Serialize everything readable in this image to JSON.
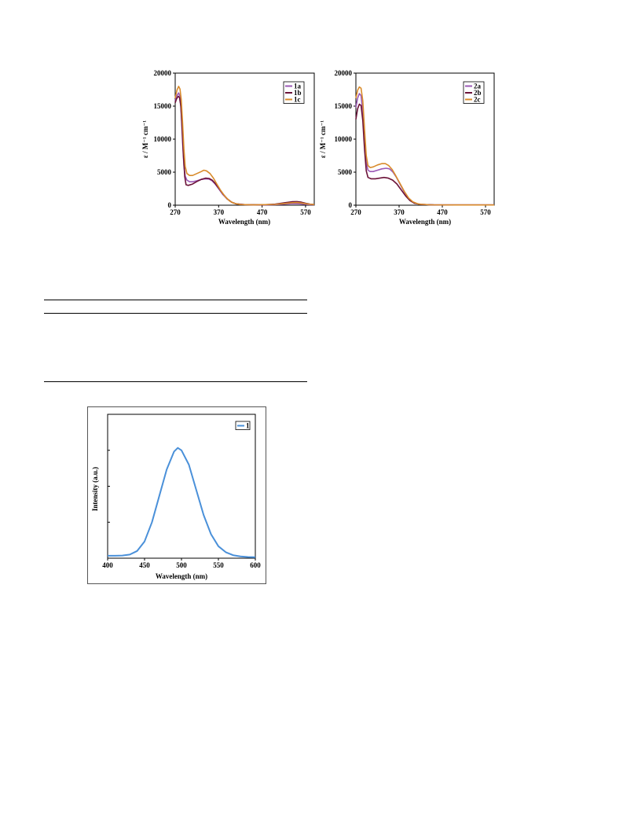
{
  "charts": {
    "abs_1": {
      "ylabel": "ε / M⁻¹ cm⁻¹",
      "xlabel": "Wavelength (nm)"
    },
    "abs_2": {
      "ylabel": "ε / M⁻¹ cm⁻¹",
      "xlabel": "Wavelength (nm)"
    },
    "emission": {
      "ylabel": "Intensity (a.u.)",
      "xlabel": "Wavelength (nm)"
    }
  },
  "chart_data": [
    {
      "type": "line",
      "xlabel": "Wavelength (nm)",
      "ylabel": "ε / M⁻¹ cm⁻¹",
      "xlim": [
        270,
        590
      ],
      "ylim": [
        0,
        20000
      ],
      "x_ticks": [
        "270",
        "370",
        "470",
        "570"
      ],
      "y_ticks": [
        "0",
        "5000",
        "10000",
        "15000",
        "20000"
      ],
      "legend": "top-right",
      "grid": false,
      "series": [
        {
          "name": "1a",
          "color": "#9b59b6",
          "points": [
            [
              270,
              15800
            ],
            [
              274,
              16600
            ],
            [
              278,
              17000
            ],
            [
              281,
              16500
            ],
            [
              284,
              14000
            ],
            [
              287,
              9500
            ],
            [
              290,
              6000
            ],
            [
              293,
              4400
            ],
            [
              297,
              3800
            ],
            [
              303,
              3550
            ],
            [
              310,
              3550
            ],
            [
              320,
              3700
            ],
            [
              330,
              3900
            ],
            [
              340,
              4000
            ],
            [
              348,
              3950
            ],
            [
              355,
              3700
            ],
            [
              362,
              3200
            ],
            [
              370,
              2500
            ],
            [
              380,
              1600
            ],
            [
              390,
              900
            ],
            [
              400,
              450
            ],
            [
              410,
              200
            ],
            [
              430,
              80
            ],
            [
              470,
              40
            ],
            [
              500,
              80
            ],
            [
              520,
              150
            ],
            [
              540,
              250
            ],
            [
              555,
              220
            ],
            [
              565,
              150
            ],
            [
              580,
              80
            ],
            [
              590,
              60
            ]
          ]
        },
        {
          "name": "1b",
          "color": "#6b1238",
          "points": [
            [
              270,
              15500
            ],
            [
              273,
              16100
            ],
            [
              277,
              16500
            ],
            [
              280,
              16300
            ],
            [
              283,
              15000
            ],
            [
              286,
              11500
            ],
            [
              289,
              7500
            ],
            [
              292,
              4300
            ],
            [
              295,
              3100
            ],
            [
              300,
              3000
            ],
            [
              310,
              3200
            ],
            [
              320,
              3600
            ],
            [
              330,
              3900
            ],
            [
              340,
              4100
            ],
            [
              348,
              4050
            ],
            [
              355,
              3800
            ],
            [
              362,
              3300
            ],
            [
              370,
              2600
            ],
            [
              380,
              1700
            ],
            [
              390,
              950
            ],
            [
              400,
              450
            ],
            [
              410,
              200
            ],
            [
              430,
              80
            ],
            [
              470,
              50
            ],
            [
              500,
              150
            ],
            [
              520,
              350
            ],
            [
              540,
              520
            ],
            [
              550,
              550
            ],
            [
              560,
              470
            ],
            [
              570,
              300
            ],
            [
              580,
              150
            ],
            [
              590,
              100
            ]
          ]
        },
        {
          "name": "1c",
          "color": "#d98b2b",
          "points": [
            [
              270,
              16200
            ],
            [
              274,
              17400
            ],
            [
              278,
              18000
            ],
            [
              281,
              17600
            ],
            [
              284,
              16000
            ],
            [
              287,
              12500
            ],
            [
              290,
              8500
            ],
            [
              293,
              5900
            ],
            [
              297,
              4800
            ],
            [
              303,
              4500
            ],
            [
              310,
              4500
            ],
            [
              320,
              4800
            ],
            [
              330,
              5100
            ],
            [
              336,
              5300
            ],
            [
              342,
              5200
            ],
            [
              350,
              4800
            ],
            [
              358,
              4100
            ],
            [
              365,
              3300
            ],
            [
              375,
              2200
            ],
            [
              385,
              1300
            ],
            [
              395,
              650
            ],
            [
              405,
              300
            ],
            [
              420,
              100
            ],
            [
              450,
              50
            ],
            [
              500,
              120
            ],
            [
              520,
              250
            ],
            [
              540,
              380
            ],
            [
              550,
              400
            ],
            [
              560,
              330
            ],
            [
              575,
              180
            ],
            [
              590,
              100
            ]
          ]
        }
      ]
    },
    {
      "type": "line",
      "xlabel": "Wavelength (nm)",
      "ylabel": "ε / M⁻¹ cm⁻¹",
      "xlim": [
        270,
        590
      ],
      "ylim": [
        0,
        20000
      ],
      "x_ticks": [
        "270",
        "370",
        "470",
        "570"
      ],
      "y_ticks": [
        "0",
        "5000",
        "10000",
        "15000",
        "20000"
      ],
      "legend": "top-right",
      "grid": false,
      "series": [
        {
          "name": "2a",
          "color": "#9b59b6",
          "points": [
            [
              270,
              14800
            ],
            [
              274,
              16200
            ],
            [
              278,
              16900
            ],
            [
              282,
              16600
            ],
            [
              286,
              14000
            ],
            [
              290,
              9500
            ],
            [
              294,
              6400
            ],
            [
              298,
              5300
            ],
            [
              303,
              5100
            ],
            [
              310,
              5100
            ],
            [
              320,
              5300
            ],
            [
              330,
              5500
            ],
            [
              340,
              5600
            ],
            [
              348,
              5500
            ],
            [
              356,
              5000
            ],
            [
              364,
              4200
            ],
            [
              372,
              3200
            ],
            [
              382,
              2000
            ],
            [
              392,
              1000
            ],
            [
              402,
              450
            ],
            [
              415,
              150
            ],
            [
              440,
              60
            ],
            [
              500,
              40
            ],
            [
              590,
              30
            ]
          ]
        },
        {
          "name": "2b",
          "color": "#6b1238",
          "points": [
            [
              270,
              13000
            ],
            [
              274,
              14600
            ],
            [
              278,
              15300
            ],
            [
              282,
              15100
            ],
            [
              286,
              12800
            ],
            [
              290,
              8500
            ],
            [
              294,
              5200
            ],
            [
              298,
              4200
            ],
            [
              305,
              4000
            ],
            [
              315,
              4000
            ],
            [
              325,
              4100
            ],
            [
              335,
              4200
            ],
            [
              345,
              4100
            ],
            [
              355,
              3800
            ],
            [
              365,
              3200
            ],
            [
              375,
              2300
            ],
            [
              385,
              1400
            ],
            [
              395,
              700
            ],
            [
              405,
              300
            ],
            [
              420,
              120
            ],
            [
              450,
              60
            ],
            [
              500,
              40
            ],
            [
              590,
              30
            ]
          ]
        },
        {
          "name": "2c",
          "color": "#d98b2b",
          "points": [
            [
              270,
              16200
            ],
            [
              274,
              17400
            ],
            [
              278,
              17900
            ],
            [
              282,
              17700
            ],
            [
              286,
              15800
            ],
            [
              290,
              11500
            ],
            [
              294,
              7500
            ],
            [
              298,
              6000
            ],
            [
              303,
              5700
            ],
            [
              310,
              5800
            ],
            [
              320,
              6100
            ],
            [
              330,
              6300
            ],
            [
              338,
              6300
            ],
            [
              346,
              6000
            ],
            [
              354,
              5400
            ],
            [
              362,
              4500
            ],
            [
              372,
              3300
            ],
            [
              382,
              2100
            ],
            [
              392,
              1100
            ],
            [
              402,
              500
            ],
            [
              415,
              170
            ],
            [
              440,
              60
            ],
            [
              500,
              40
            ],
            [
              590,
              30
            ]
          ]
        }
      ]
    },
    {
      "type": "line",
      "xlabel": "Wavelength (nm)",
      "ylabel": "Intensity (a.u.)",
      "xlim": [
        400,
        600
      ],
      "ylim": [
        0,
        1.2
      ],
      "x_ticks": [
        "400",
        "450",
        "500",
        "550",
        "600"
      ],
      "legend": "top-right",
      "grid": false,
      "series": [
        {
          "name": "1",
          "color": "#4a90d9",
          "points": [
            [
              400,
              0.02
            ],
            [
              410,
              0.02
            ],
            [
              420,
              0.022
            ],
            [
              430,
              0.03
            ],
            [
              440,
              0.06
            ],
            [
              450,
              0.14
            ],
            [
              460,
              0.3
            ],
            [
              470,
              0.52
            ],
            [
              480,
              0.74
            ],
            [
              490,
              0.89
            ],
            [
              495,
              0.92
            ],
            [
              500,
              0.9
            ],
            [
              510,
              0.78
            ],
            [
              520,
              0.57
            ],
            [
              530,
              0.36
            ],
            [
              540,
              0.2
            ],
            [
              550,
              0.1
            ],
            [
              560,
              0.05
            ],
            [
              570,
              0.025
            ],
            [
              580,
              0.015
            ],
            [
              590,
              0.01
            ],
            [
              600,
              0.008
            ]
          ]
        }
      ]
    }
  ]
}
